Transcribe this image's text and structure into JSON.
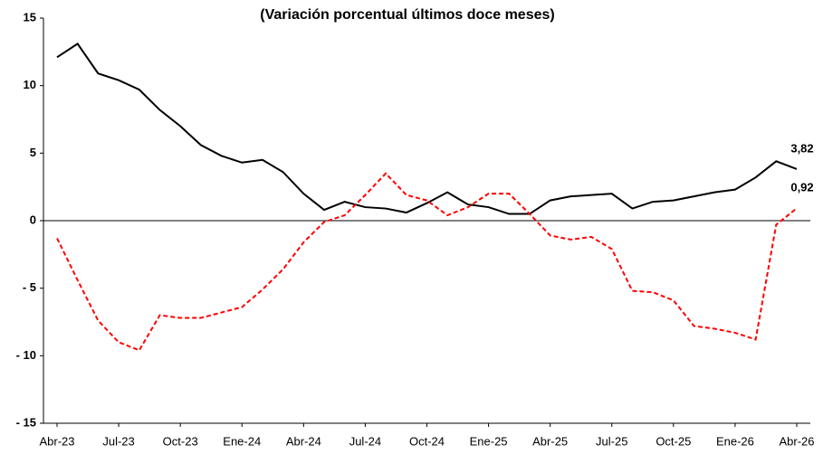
{
  "chart_data": {
    "type": "line",
    "title": "(Variación porcentual últimos doce meses)",
    "categories": [
      "Abr-23",
      null,
      null,
      "Jul-23",
      null,
      null,
      "Oct-23",
      null,
      null,
      "Ene-24",
      null,
      null,
      "Abr-24",
      null,
      null,
      "Jul-24",
      null,
      null,
      "Oct-24",
      null,
      null,
      "Ene-25",
      null,
      null,
      "Abr-25",
      null,
      null,
      "Jul-25",
      null,
      null,
      "Oct-25",
      null,
      null,
      "Ene-26",
      null,
      null,
      "Abr-26"
    ],
    "series": [
      {
        "color": "#000000",
        "dash": false,
        "values": [
          12.1,
          13.1,
          10.9,
          10.4,
          9.7,
          8.2,
          7.0,
          5.6,
          4.8,
          4.3,
          4.5,
          3.6,
          2.0,
          0.8,
          1.4,
          1.0,
          0.9,
          0.6,
          1.3,
          2.1,
          1.2,
          1.0,
          0.5,
          0.5,
          1.5,
          1.8,
          1.9,
          2.0,
          0.9,
          1.4,
          1.5,
          1.8,
          2.1,
          2.3,
          3.2,
          4.4,
          3.82
        ],
        "value_labels": [
          null,
          null,
          null,
          null,
          null,
          null,
          null,
          null,
          null,
          null,
          null,
          null,
          null,
          null,
          null,
          null,
          null,
          null,
          null,
          null,
          null,
          null,
          null,
          null,
          null,
          null,
          null,
          null,
          null,
          null,
          null,
          null,
          null,
          null,
          null,
          null,
          "3,82"
        ]
      },
      {
        "color": "#ff0000",
        "dash": true,
        "values": [
          -1.3,
          -4.4,
          -7.4,
          -9.0,
          -9.6,
          -7.0,
          -7.2,
          -7.2,
          -6.8,
          -6.4,
          -5.1,
          -3.6,
          -1.6,
          -0.1,
          0.4,
          1.9,
          3.5,
          1.9,
          1.5,
          0.4,
          1.0,
          2.0,
          2.0,
          0.5,
          -1.1,
          -1.4,
          -1.2,
          -2.1,
          -5.2,
          -5.3,
          -5.9,
          -7.8,
          -8.0,
          -8.3,
          -8.8,
          -0.3,
          0.92
        ],
        "value_labels": [
          null,
          null,
          null,
          null,
          null,
          null,
          null,
          null,
          null,
          null,
          null,
          null,
          null,
          null,
          null,
          null,
          null,
          null,
          null,
          null,
          null,
          null,
          null,
          null,
          null,
          null,
          null,
          null,
          null,
          null,
          null,
          null,
          null,
          null,
          null,
          null,
          "0,92"
        ]
      }
    ],
    "ylim": [
      -15,
      15
    ],
    "yticks": [
      15,
      10,
      5,
      0,
      {
        "value": -5,
        "label": "- 5"
      },
      {
        "value": -10,
        "label": "- 10"
      },
      {
        "value": -15,
        "label": "- 15"
      }
    ],
    "grid": false
  }
}
